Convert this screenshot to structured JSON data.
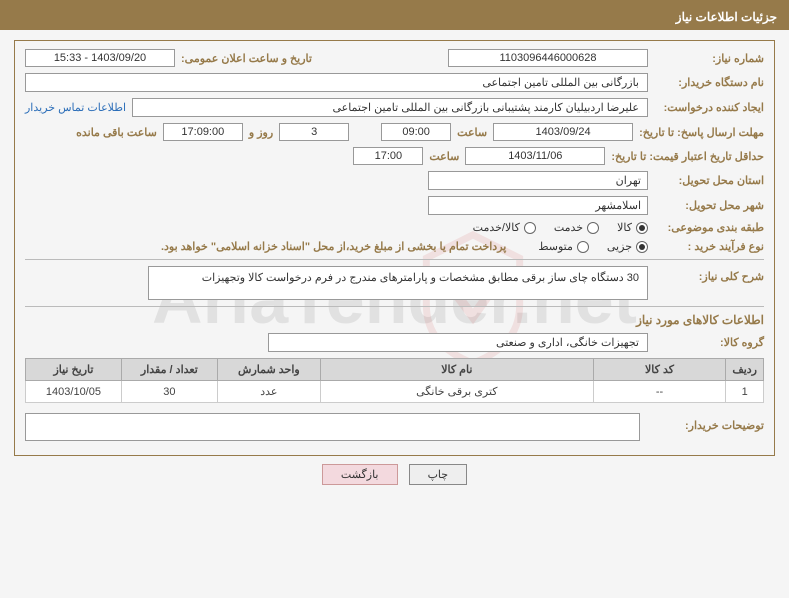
{
  "header": {
    "title": "جزئیات اطلاعات نیاز"
  },
  "watermark": "AriaTender.net",
  "fields": {
    "needNumberLabel": "شماره نیاز:",
    "needNumber": "1103096446000628",
    "announceDateLabel": "تاریخ و ساعت اعلان عمومی:",
    "announceDate": "1403/09/20 - 15:33",
    "buyerOrgLabel": "نام دستگاه خریدار:",
    "buyerOrg": "بازرگانی بین المللی تامین اجتماعی",
    "requesterLabel": "ایجاد کننده درخواست:",
    "requester": "علیرضا اردبیلیان کارمند پشتیبانی بازرگانی بین المللی تامین اجتماعی",
    "contactLink": "اطلاعات تماس خریدار",
    "deadlineLabel": "مهلت ارسال پاسخ: تا تاریخ:",
    "deadlineDate": "1403/09/24",
    "hourLabel": "ساعت",
    "deadlineHour": "09:00",
    "daysRemain": "3",
    "daysLabel": "روز و",
    "hoursRemain": "17:09:00",
    "remainLabel": "ساعت باقی مانده",
    "validityLabel": "حداقل تاریخ اعتبار قیمت: تا تاریخ:",
    "validityDate": "1403/11/06",
    "validityHour": "17:00",
    "provinceLabel": "استان محل تحویل:",
    "province": "تهران",
    "cityLabel": "شهر محل تحویل:",
    "city": "اسلامشهر",
    "categoryLabel": "طبقه بندی موضوعی:",
    "cat1": "کالا",
    "cat2": "خدمت",
    "cat3": "کالا/خدمت",
    "purchaseTypeLabel": "نوع فرآیند خرید :",
    "pt1": "جزیی",
    "pt2": "متوسط",
    "purchaseNote": "پرداخت تمام یا بخشی از مبلغ خرید،از محل \"اسناد خزانه اسلامی\" خواهد بود.",
    "summaryLabel": "شرح کلی نیاز:",
    "summary": "30 دستگاه چای ساز برقی مطابق مشخصات و پارامترهای مندرج در فرم درخواست کالا وتجهیزات",
    "itemsTitle": "اطلاعات کالاهای مورد نیاز",
    "groupLabel": "گروه کالا:",
    "group": "تجهیزات خانگی، اداری و صنعتی",
    "buyerNotesLabel": "توضیحات خریدار:"
  },
  "table": {
    "headers": [
      "ردیف",
      "کد کالا",
      "نام کالا",
      "واحد شمارش",
      "تعداد / مقدار",
      "تاریخ نیاز"
    ],
    "colWidths": [
      "5%",
      "18%",
      "37%",
      "14%",
      "13%",
      "13%"
    ],
    "rows": [
      [
        "1",
        "--",
        "کتری برقی خانگی",
        "عدد",
        "30",
        "1403/10/05"
      ]
    ]
  },
  "buttons": {
    "print": "چاپ",
    "back": "بازگشت"
  },
  "colors": {
    "brand": "#967a4a",
    "link": "#2a6db8",
    "thBg": "#d8d8d8",
    "btnBack": "#f3d9de"
  }
}
